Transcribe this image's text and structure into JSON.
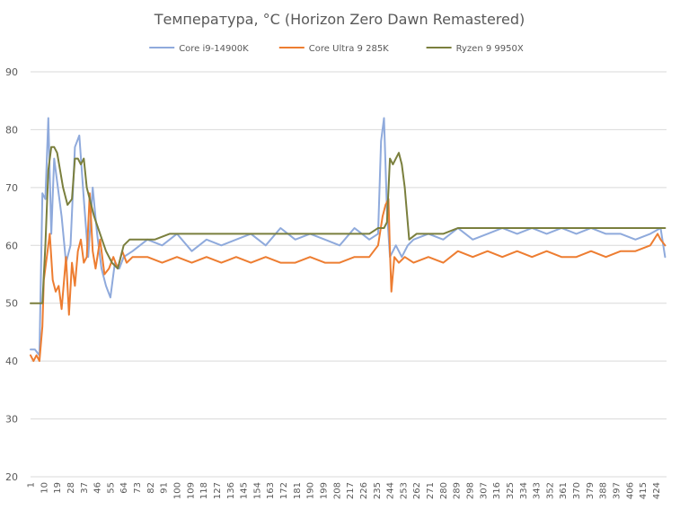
{
  "chart_data": {
    "type": "line",
    "title": "Температура, °C (Horizon Zero Dawn Remastered)",
    "xlabel": "",
    "ylabel": "",
    "ylim": [
      20,
      90
    ],
    "yticks": [
      20,
      30,
      40,
      50,
      60,
      70,
      80,
      90
    ],
    "xlim": [
      1,
      431
    ],
    "xticks": [
      1,
      10,
      19,
      28,
      37,
      46,
      55,
      64,
      73,
      82,
      91,
      100,
      109,
      118,
      127,
      136,
      145,
      154,
      163,
      172,
      181,
      190,
      199,
      208,
      217,
      226,
      235,
      244,
      253,
      262,
      271,
      280,
      289,
      298,
      307,
      316,
      325,
      334,
      343,
      352,
      361,
      370,
      379,
      388,
      397,
      406,
      415,
      424
    ],
    "grid": "horizontal",
    "legend_position": "top",
    "series": [
      {
        "name": "Core i9-14900K",
        "color": "#8FAADC",
        "x": [
          1,
          4,
          7,
          9,
          11,
          13,
          15,
          17,
          19,
          22,
          25,
          28,
          31,
          34,
          37,
          40,
          43,
          46,
          49,
          52,
          55,
          58,
          61,
          64,
          70,
          80,
          90,
          100,
          110,
          120,
          130,
          140,
          150,
          160,
          170,
          180,
          190,
          200,
          210,
          220,
          230,
          236,
          238,
          240,
          242,
          244,
          246,
          248,
          252,
          256,
          260,
          270,
          280,
          290,
          300,
          310,
          320,
          330,
          340,
          350,
          360,
          370,
          380,
          390,
          400,
          410,
          420,
          427,
          430
        ],
        "y": [
          42,
          42,
          41,
          69,
          68,
          82,
          62,
          75,
          71,
          65,
          57,
          60,
          77,
          79,
          68,
          58,
          70,
          62,
          56,
          53,
          51,
          57,
          56,
          58,
          59,
          61,
          60,
          62,
          59,
          61,
          60,
          61,
          62,
          60,
          63,
          61,
          62,
          61,
          60,
          63,
          61,
          62,
          78,
          82,
          66,
          58,
          59,
          60,
          58,
          60,
          61,
          62,
          61,
          63,
          61,
          62,
          63,
          62,
          63,
          62,
          63,
          62,
          63,
          62,
          62,
          61,
          62,
          63,
          58
        ]
      },
      {
        "name": "Core Ultra 9 285K",
        "color": "#ED7D31",
        "x": [
          1,
          3,
          5,
          7,
          9,
          10,
          12,
          14,
          16,
          18,
          20,
          22,
          25,
          27,
          29,
          31,
          33,
          35,
          37,
          39,
          41,
          43,
          45,
          48,
          51,
          54,
          57,
          60,
          63,
          66,
          70,
          80,
          90,
          100,
          110,
          120,
          130,
          140,
          150,
          160,
          170,
          180,
          190,
          200,
          210,
          220,
          230,
          236,
          239,
          241,
          243,
          244,
          245,
          247,
          250,
          254,
          260,
          270,
          280,
          290,
          300,
          310,
          320,
          330,
          340,
          350,
          360,
          370,
          380,
          390,
          400,
          410,
          420,
          425,
          427,
          430
        ],
        "y": [
          41,
          40,
          41,
          40,
          46,
          54,
          58,
          62,
          54,
          52,
          53,
          49,
          58,
          48,
          57,
          53,
          59,
          61,
          57,
          58,
          69,
          59,
          56,
          61,
          55,
          56,
          58,
          56,
          59,
          57,
          58,
          58,
          57,
          58,
          57,
          58,
          57,
          58,
          57,
          58,
          57,
          57,
          58,
          57,
          57,
          58,
          58,
          60,
          65,
          67,
          68,
          59,
          52,
          58,
          57,
          58,
          57,
          58,
          57,
          59,
          58,
          59,
          58,
          59,
          58,
          59,
          58,
          58,
          59,
          58,
          59,
          59,
          60,
          62,
          61,
          60
        ]
      },
      {
        "name": "Ryzen 9 9950X",
        "color": "#7A7F3D",
        "x": [
          1,
          5,
          9,
          11,
          13,
          15,
          17,
          19,
          21,
          23,
          26,
          29,
          31,
          33,
          35,
          37,
          39,
          41,
          44,
          48,
          52,
          56,
          60,
          64,
          68,
          75,
          85,
          95,
          110,
          130,
          150,
          170,
          190,
          210,
          230,
          236,
          238,
          240,
          242,
          244,
          246,
          248,
          250,
          252,
          254,
          257,
          262,
          270,
          280,
          290,
          300,
          320,
          340,
          360,
          380,
          400,
          420,
          425,
          430
        ],
        "y": [
          50,
          50,
          50,
          60,
          73,
          77,
          77,
          76,
          73,
          70,
          67,
          68,
          75,
          75,
          74,
          75,
          70,
          68,
          65,
          62,
          59,
          57,
          56,
          60,
          61,
          61,
          61,
          62,
          62,
          62,
          62,
          62,
          62,
          62,
          62,
          63,
          63,
          63,
          64,
          75,
          74,
          75,
          76,
          74,
          70,
          61,
          62,
          62,
          62,
          63,
          63,
          63,
          63,
          63,
          63,
          63,
          63,
          63,
          63
        ]
      }
    ]
  }
}
